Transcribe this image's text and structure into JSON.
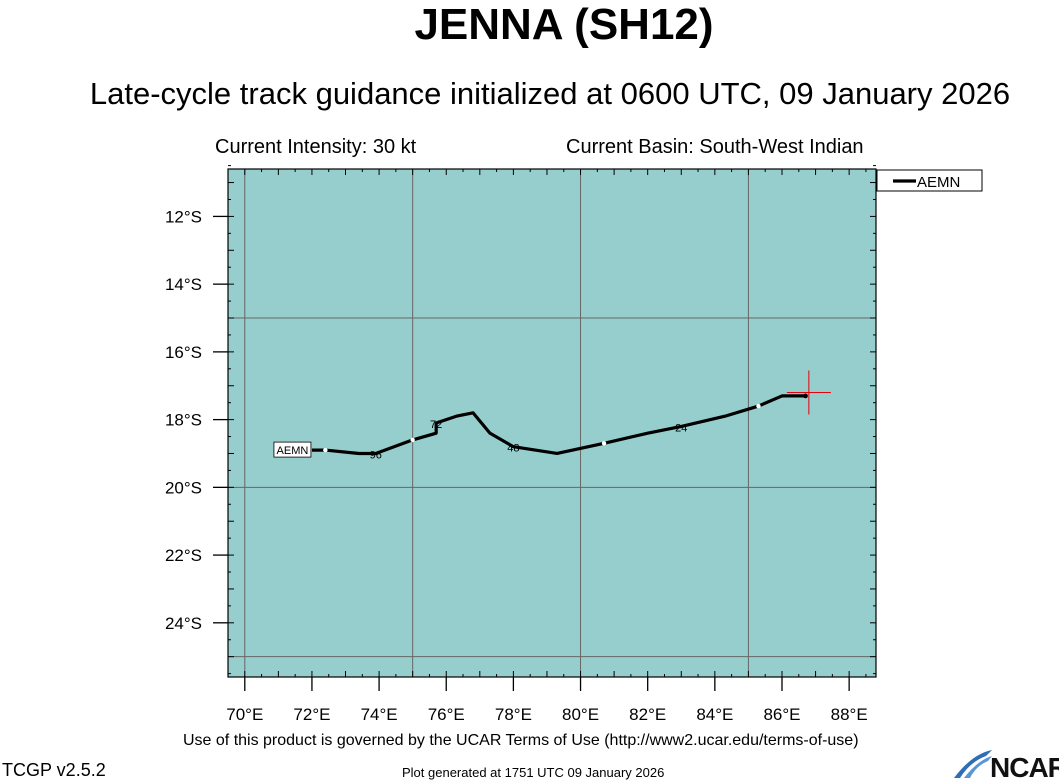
{
  "header": {
    "storm_title": "JENNA (SH12)",
    "subtitle": "Late-cycle track guidance initialized at 0600 UTC, 09 January 2026",
    "intensity": "Current Intensity: 30 kt",
    "basin": "Current Basin: South-West Indian"
  },
  "footer": {
    "terms": "Use of this product is governed by the UCAR Terms of Use (http://www2.ucar.edu/terms-of-use)",
    "version": "TCGP v2.5.2",
    "generated": "Plot generated at 1751 UTC   09 January 2026",
    "logo_text": "NCAR"
  },
  "colors": {
    "ocean": "#96cece",
    "grid": "#666666",
    "track": "#000000",
    "marker": "#e8000b"
  },
  "chart_data": {
    "type": "line",
    "xlabel": "",
    "ylabel": "",
    "xlim": [
      69.5,
      88.8
    ],
    "ylim": [
      -25.6,
      -10.6
    ],
    "x_ticks": [
      {
        "value": 70,
        "label": "70°E"
      },
      {
        "value": 72,
        "label": "72°E"
      },
      {
        "value": 74,
        "label": "74°E"
      },
      {
        "value": 76,
        "label": "76°E"
      },
      {
        "value": 78,
        "label": "78°E"
      },
      {
        "value": 80,
        "label": "80°E"
      },
      {
        "value": 82,
        "label": "82°E"
      },
      {
        "value": 84,
        "label": "84°E"
      },
      {
        "value": 86,
        "label": "86°E"
      },
      {
        "value": 88,
        "label": "88°E"
      }
    ],
    "y_ticks": [
      {
        "value": -12,
        "label": "12°S"
      },
      {
        "value": -14,
        "label": "14°S"
      },
      {
        "value": -16,
        "label": "16°S"
      },
      {
        "value": -18,
        "label": "18°S"
      },
      {
        "value": -20,
        "label": "20°S"
      },
      {
        "value": -22,
        "label": "22°S"
      },
      {
        "value": -24,
        "label": "24°S"
      }
    ],
    "grid_lon": [
      70,
      75,
      80,
      85
    ],
    "grid_lat": [
      -15,
      -20,
      -25
    ],
    "legend_position": "top-right",
    "current_position": {
      "lon": 86.8,
      "lat": -17.2
    },
    "series": [
      {
        "name": "AEMN",
        "end_label": "AEMN",
        "points": [
          [
            86.7,
            -17.3
          ],
          [
            86.0,
            -17.3
          ],
          [
            85.3,
            -17.6
          ],
          [
            84.3,
            -17.9
          ],
          [
            83.0,
            -18.2
          ],
          [
            82.0,
            -18.4
          ],
          [
            80.7,
            -18.7
          ],
          [
            79.3,
            -19.0
          ],
          [
            78.0,
            -18.8
          ],
          [
            77.3,
            -18.4
          ],
          [
            76.8,
            -17.8
          ],
          [
            76.3,
            -17.9
          ],
          [
            75.7,
            -18.1
          ],
          [
            75.7,
            -18.4
          ],
          [
            75.0,
            -18.6
          ],
          [
            73.9,
            -19.0
          ],
          [
            73.4,
            -19.0
          ],
          [
            72.4,
            -18.9
          ],
          [
            72.0,
            -18.9
          ]
        ],
        "gap_points": [
          [
            85.3,
            -17.6
          ],
          [
            80.7,
            -18.7
          ],
          [
            75.0,
            -18.6
          ],
          [
            72.4,
            -18.9
          ]
        ],
        "tau_labels": [
          {
            "text": "24",
            "lon": 83.0,
            "lat": -18.2
          },
          {
            "text": "48",
            "lon": 78.0,
            "lat": -18.8
          },
          {
            "text": "72",
            "lon": 75.7,
            "lat": -18.1
          },
          {
            "text": "96",
            "lon": 73.9,
            "lat": -19.0
          }
        ]
      }
    ]
  }
}
